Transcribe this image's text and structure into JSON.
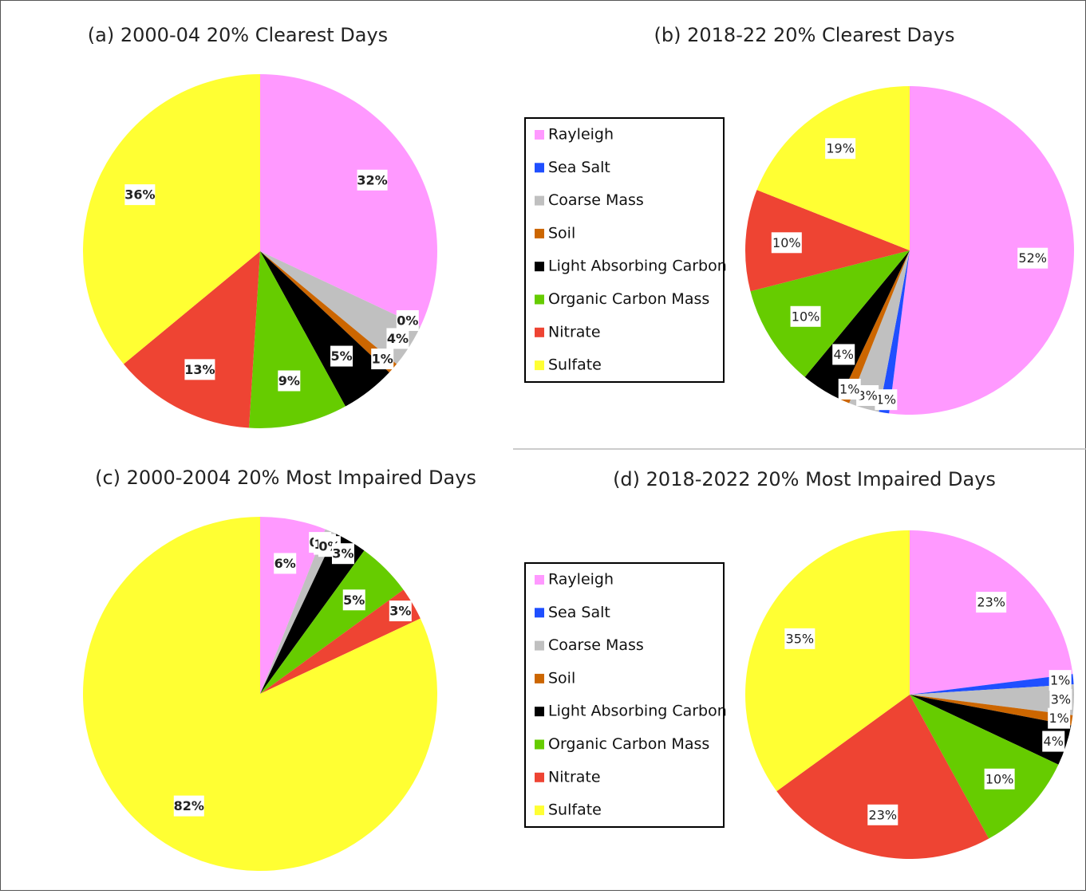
{
  "chart_data": [
    {
      "type": "pie",
      "title": "(a) 2000-04 20% Clearest Days",
      "values": [
        32,
        0,
        4,
        1,
        5,
        9,
        13,
        36
      ],
      "value_labels": [
        "32%",
        "0%",
        "4%",
        "1%",
        "5%",
        "9%",
        "13%",
        "36%"
      ],
      "colors": [
        "#ff99ff",
        "#1f4fff",
        "#c0c0c0",
        "#cc6600",
        "#000000",
        "#66cc00",
        "#ee4433",
        "#ffff33"
      ],
      "bold_labels": true,
      "legend": false
    },
    {
      "type": "pie",
      "title": "(b) 2018-22 20% Clearest Days",
      "categories": [
        "Rayleigh",
        "Sea Salt",
        "Coarse Mass",
        "Soil",
        "Light Absorbing Carbon",
        "Organic Carbon Mass",
        "Nitrate",
        "Sulfate"
      ],
      "values": [
        52,
        1,
        3,
        1,
        4,
        10,
        10,
        19
      ],
      "value_labels": [
        "52%",
        "1%",
        "3%",
        "1%",
        "4%",
        "10%",
        "10%",
        "19%"
      ],
      "colors": [
        "#ff99ff",
        "#1f4fff",
        "#c0c0c0",
        "#cc6600",
        "#000000",
        "#66cc00",
        "#ee4433",
        "#ffff33"
      ],
      "bold_labels": false,
      "legend": true
    },
    {
      "type": "pie",
      "title": "(c) 2000-2004 20% Most Impaired Days",
      "values": [
        6,
        0,
        1,
        0,
        3,
        5,
        3,
        82
      ],
      "value_labels": [
        "6%",
        "0%",
        "1%",
        "0%",
        "3%",
        "5%",
        "3%",
        "82%"
      ],
      "colors": [
        "#ff99ff",
        "#1f4fff",
        "#c0c0c0",
        "#cc6600",
        "#000000",
        "#66cc00",
        "#ee4433",
        "#ffff33"
      ],
      "bold_labels": true,
      "legend": false
    },
    {
      "type": "pie",
      "title": "(d) 2018-2022 20% Most Impaired Days",
      "categories": [
        "Rayleigh",
        "Sea Salt",
        "Coarse Mass",
        "Soil",
        "Light Absorbing Carbon",
        "Organic Carbon Mass",
        "Nitrate",
        "Sulfate"
      ],
      "values": [
        23,
        1,
        3,
        1,
        4,
        10,
        23,
        35
      ],
      "value_labels": [
        "23%",
        "1%",
        "3%",
        "1%",
        "4%",
        "10%",
        "23%",
        "35%"
      ],
      "colors": [
        "#ff99ff",
        "#1f4fff",
        "#c0c0c0",
        "#cc6600",
        "#000000",
        "#66cc00",
        "#ee4433",
        "#ffff33"
      ],
      "bold_labels": false,
      "legend": true
    }
  ]
}
